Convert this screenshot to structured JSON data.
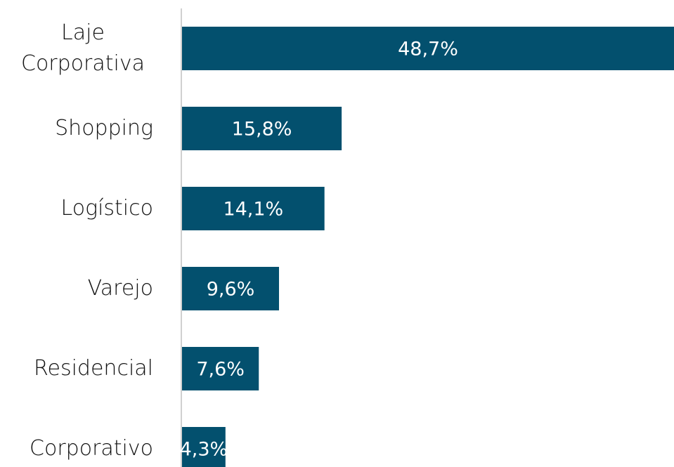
{
  "chart_data": {
    "type": "bar",
    "orientation": "horizontal",
    "categories": [
      "Laje Corporativa",
      "Shopping",
      "Logístico",
      "Varejo",
      "Residencial",
      "Corporativo"
    ],
    "values": [
      48.7,
      15.8,
      14.1,
      9.6,
      7.6,
      4.3
    ],
    "value_labels": [
      "48,7%",
      "15,8%",
      "14,1%",
      "9,6%",
      "7,6%",
      "4,3%"
    ],
    "color": "#03506e"
  }
}
